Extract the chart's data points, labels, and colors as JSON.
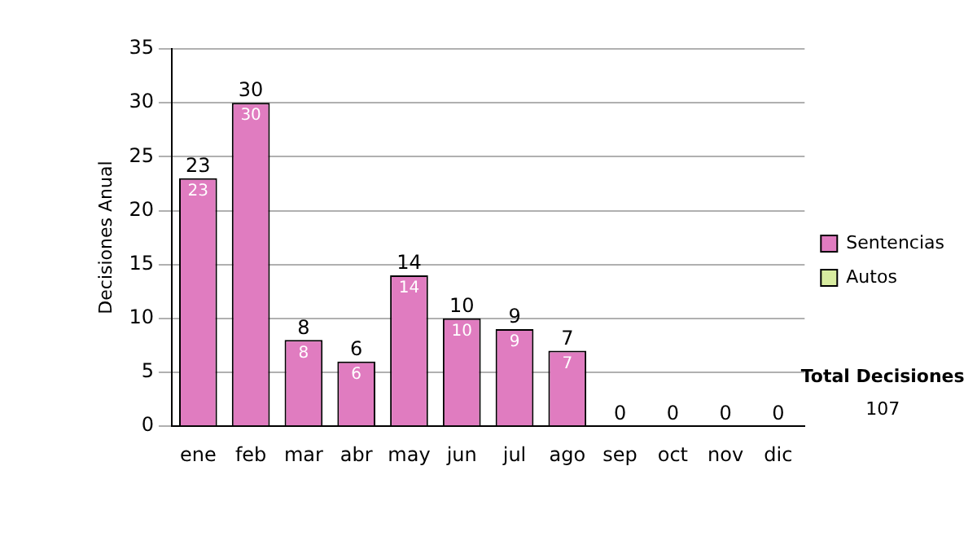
{
  "chart_data": {
    "type": "bar",
    "stacked": true,
    "ylabel": "Decisiones Anual",
    "categories": [
      "ene",
      "feb",
      "mar",
      "abr",
      "may",
      "jun",
      "jul",
      "ago",
      "sep",
      "oct",
      "nov",
      "dic"
    ],
    "series": [
      {
        "name": "Sentencias",
        "color": "#e07cc0",
        "values": [
          23,
          30,
          8,
          6,
          14,
          10,
          9,
          7,
          0,
          0,
          0,
          0
        ],
        "value_labels": [
          "23",
          "30",
          "8",
          "6",
          "14",
          "10",
          "9",
          "7",
          null,
          null,
          null,
          null
        ]
      },
      {
        "name": "Autos",
        "color": "#d8eca0",
        "values": [
          0,
          0,
          0,
          0,
          0,
          0,
          0,
          0,
          0,
          0,
          0,
          0
        ]
      }
    ],
    "totals": [
      "23",
      "30",
      "8",
      "6",
      "14",
      "10",
      "9",
      "7",
      "0",
      "0",
      "0",
      "0"
    ],
    "ylim": [
      0,
      35
    ],
    "yticks": [
      0,
      5,
      10,
      15,
      20,
      25,
      30,
      35
    ],
    "grid": "y",
    "legend": "right",
    "annotations": [
      "Total Decisiones",
      "107"
    ]
  }
}
